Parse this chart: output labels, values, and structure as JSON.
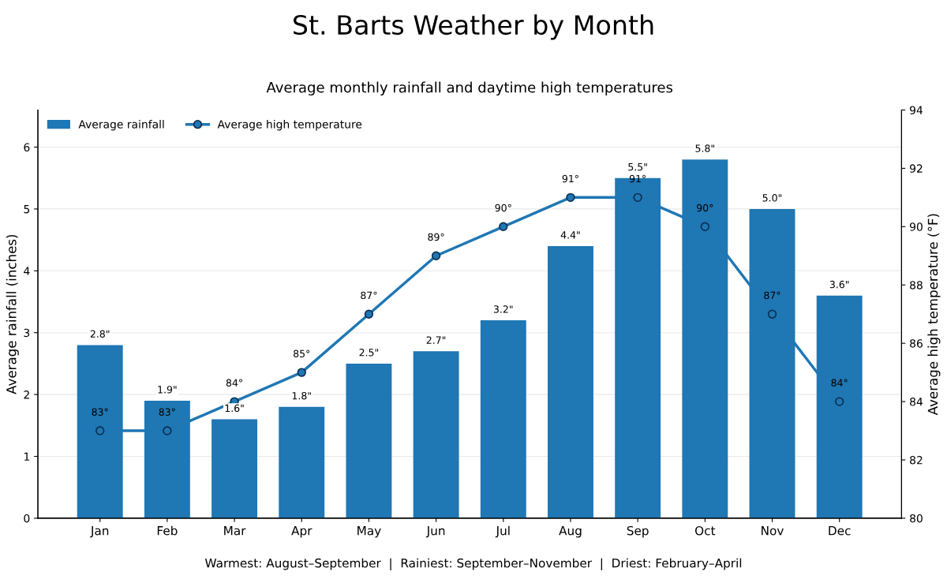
{
  "chart_data": {
    "type": "bar",
    "title": "St. Barts Weather by Month",
    "subtitle": "Average monthly rainfall and daytime high temperatures",
    "ylabel": "Average rainfall (inches)",
    "y2label": "Average high temperature (°F)",
    "categories": [
      "Jan",
      "Feb",
      "Mar",
      "Apr",
      "May",
      "Jun",
      "Jul",
      "Aug",
      "Sep",
      "Oct",
      "Nov",
      "Dec"
    ],
    "series": [
      {
        "name": "Average rainfall",
        "type": "bar",
        "color": "#1f77b4",
        "values": [
          2.8,
          1.9,
          1.6,
          1.8,
          2.5,
          2.7,
          3.2,
          4.4,
          5.5,
          5.8,
          5.0,
          3.6
        ],
        "value_labels": [
          "2.8\"",
          "1.9\"",
          "1.6\"",
          "1.8\"",
          "2.5\"",
          "2.7\"",
          "3.2\"",
          "4.4\"",
          "5.5\"",
          "5.8\"",
          "5.0\"",
          "3.6\""
        ]
      },
      {
        "name": "Average high temperature",
        "type": "line",
        "axis": "y2",
        "color": "#1f77b4",
        "marker": "circle",
        "line_style": "solid",
        "values": [
          83,
          83,
          84,
          85,
          87,
          89,
          90,
          91,
          91,
          90,
          87,
          84
        ],
        "value_labels": [
          "83°",
          "83°",
          "84°",
          "85°",
          "87°",
          "89°",
          "90°",
          "91°",
          "91°",
          "90°",
          "87°",
          "84°"
        ]
      }
    ],
    "ylim": [
      0,
      6.6
    ],
    "yticks": [
      0,
      1,
      2,
      3,
      4,
      5,
      6
    ],
    "y2lim": [
      80,
      94
    ],
    "y2ticks": [
      80,
      82,
      84,
      86,
      88,
      90,
      92,
      94
    ],
    "grid": "y",
    "legend": "top left",
    "annotations": [
      "Warmest: August–September  |  Rainiest: September–November  |  Driest: February–April"
    ]
  }
}
